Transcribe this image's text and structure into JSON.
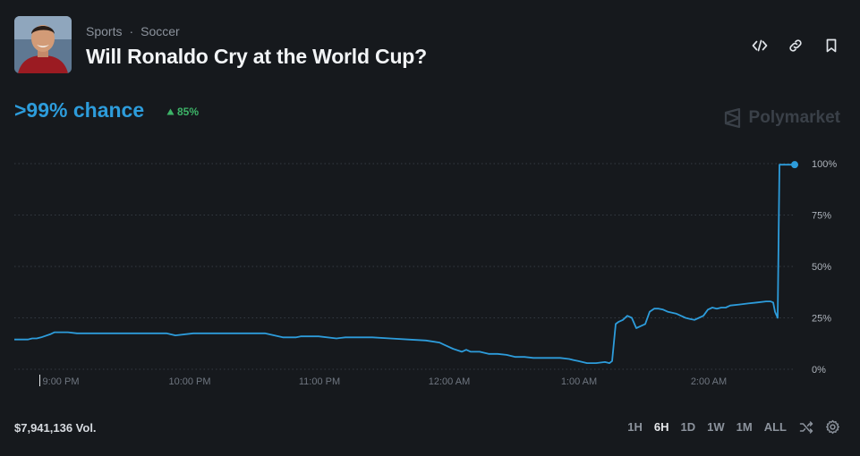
{
  "header": {
    "category": "Sports",
    "separator": "·",
    "subcategory": "Soccer",
    "title": "Will Ronaldo Cry at the World Cup?"
  },
  "summary": {
    "chance": ">99% chance",
    "change": "85%",
    "brand": "Polymarket"
  },
  "footer": {
    "volume": "$7,941,136 Vol.",
    "ranges": [
      "1H",
      "6H",
      "1D",
      "1W",
      "1M",
      "ALL"
    ],
    "active_range": "6H"
  },
  "icons": {
    "embed": "code-icon",
    "link": "link-icon",
    "bookmark": "bookmark-icon",
    "shuffle": "shuffle-icon",
    "settings": "gear-icon",
    "arrow": "triangle-up-icon"
  },
  "colors": {
    "line": "#2d9cdb",
    "up": "#3db468"
  },
  "chart_data": {
    "type": "line",
    "ylim": [
      0,
      100
    ],
    "yticks": [
      "100%",
      "75%",
      "50%",
      "25%",
      "0%"
    ],
    "xticks": [
      "9:00 PM",
      "10:00 PM",
      "11:00 PM",
      "12:00 AM",
      "1:00 AM",
      "2:00 AM"
    ],
    "grid": true,
    "series": [
      {
        "x": [
          0,
          5,
          10,
          15,
          20,
          25,
          30,
          40,
          45,
          55,
          60,
          70,
          80,
          100,
          120,
          140,
          150,
          170,
          180,
          200,
          210,
          220,
          235,
          240,
          260,
          280,
          300,
          315,
          320,
          340,
          360,
          370,
          380,
          400,
          420,
          440,
          460,
          475,
          480,
          490,
          500,
          505,
          510,
          520,
          530,
          540,
          550,
          560,
          570,
          580,
          590,
          600,
          610,
          620,
          625,
          630,
          640,
          650,
          660,
          665,
          668,
          672,
          675,
          680,
          685,
          690,
          695,
          700,
          705,
          710,
          715,
          720,
          725,
          730,
          740,
          750,
          755,
          760,
          765,
          770,
          775,
          780,
          785,
          790,
          795,
          800,
          810,
          820,
          830,
          840,
          845,
          848,
          850,
          853,
          855,
          860,
          872
        ],
        "y": [
          14.5,
          14.5,
          14.5,
          14.5,
          15,
          15,
          15.5,
          17,
          18,
          18,
          18,
          17.5,
          17.5,
          17.5,
          17.5,
          17.5,
          17.5,
          17.5,
          16.5,
          17.5,
          17.5,
          17.5,
          17.5,
          17.5,
          17.5,
          17.5,
          15.5,
          15.5,
          16,
          16,
          15,
          15.5,
          15.5,
          15.5,
          15,
          14.5,
          14,
          13,
          12,
          10,
          8.5,
          9.5,
          8.5,
          8.5,
          7.5,
          7.5,
          7,
          6,
          6,
          5.5,
          5.5,
          5.5,
          5.5,
          5,
          4.5,
          4,
          3,
          3,
          3.5,
          3,
          4,
          22,
          23,
          24,
          26,
          25,
          20,
          21,
          22,
          28,
          29.5,
          29.5,
          29,
          28,
          27,
          25,
          24.5,
          24,
          25,
          26,
          29,
          30,
          29.5,
          30,
          30,
          31,
          31.5,
          32,
          32.5,
          33,
          33,
          32.5,
          28,
          25,
          99.5,
          99.5,
          99.5
        ]
      }
    ]
  }
}
